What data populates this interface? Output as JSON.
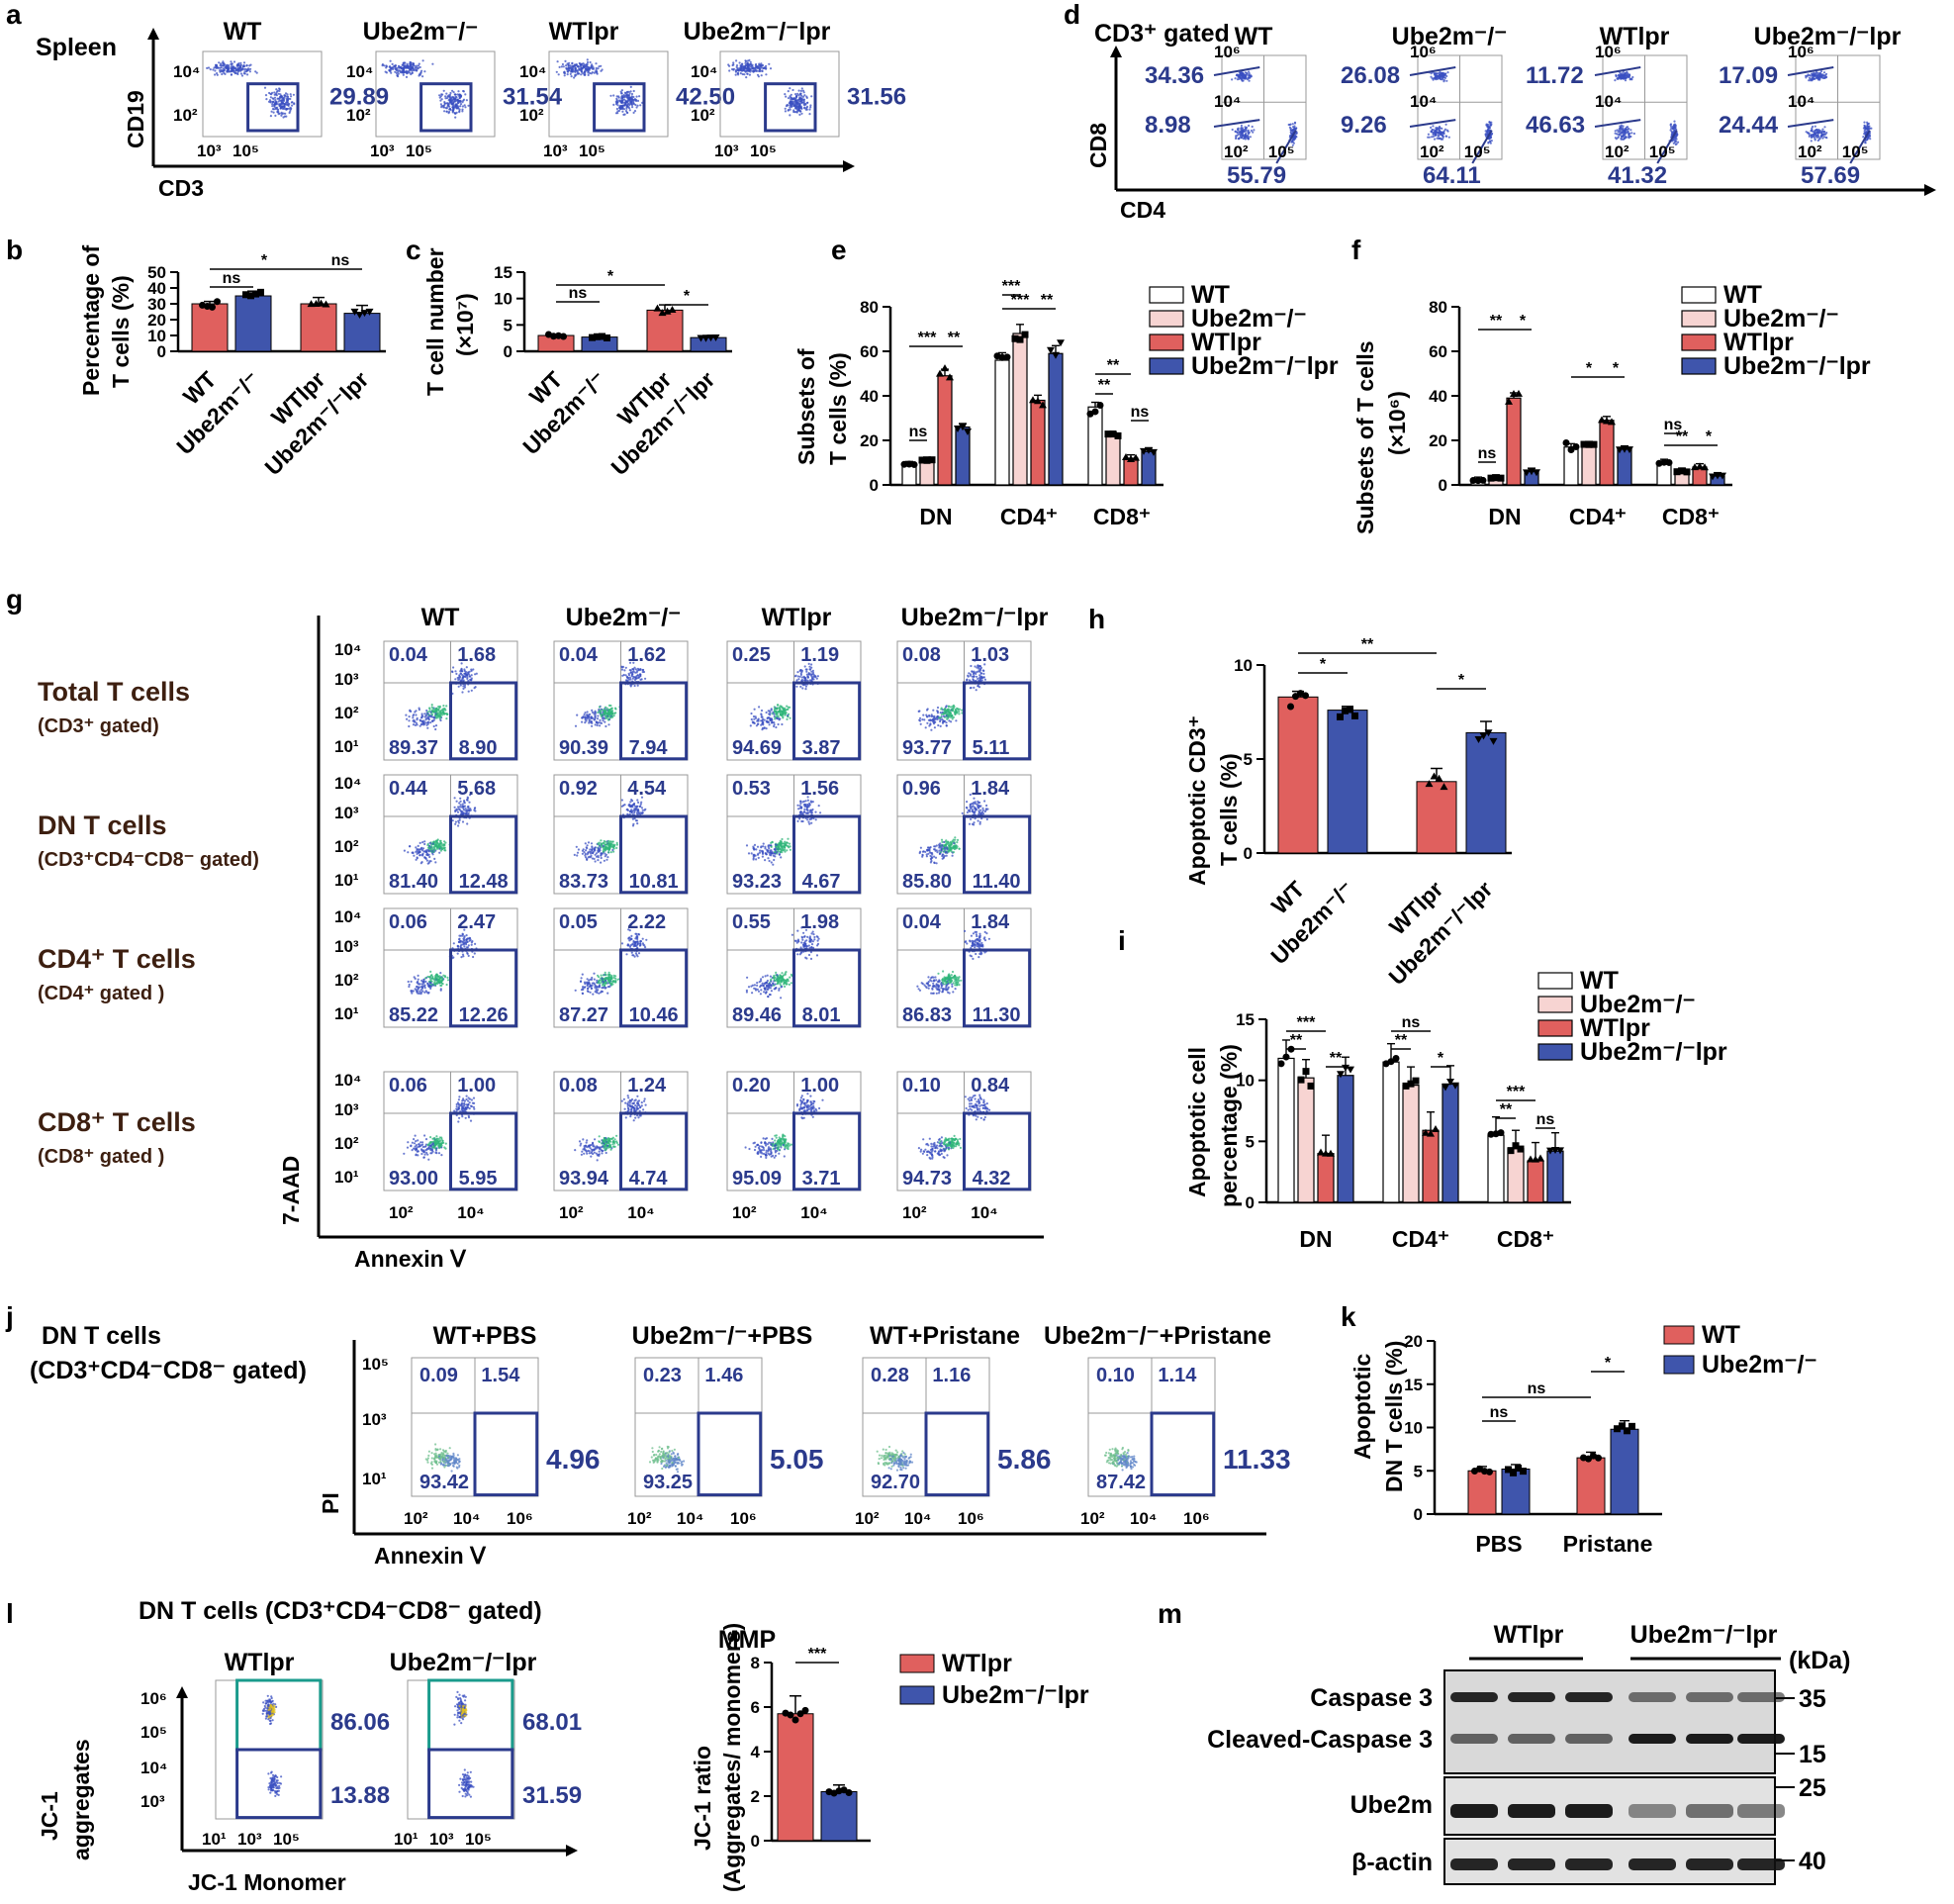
{
  "panel_labels": [
    "a",
    "b",
    "c",
    "d",
    "e",
    "f",
    "g",
    "h",
    "i",
    "j",
    "k",
    "l",
    "m"
  ],
  "groups": [
    "WT",
    "Ube2m⁻/⁻",
    "WTlpr",
    "Ube2m⁻/⁻lpr"
  ],
  "legend_labels": [
    "WT",
    "Ube2m⁻/⁻",
    "WTlpr",
    "Ube2m⁻/⁻lpr"
  ],
  "colors": {
    "wt": "#ffffff",
    "ube": "#f7d4d2",
    "wtlpr": "#e0605e",
    "ubelpr": "#3f55ac",
    "num": "#2b3a8c",
    "teal": "#1a9b8c"
  },
  "panel_a": {
    "tissue": "Spleen",
    "ylabel": "CD19",
    "xlabel": "CD3",
    "yticks": [
      "10⁴",
      "10²"
    ],
    "xticks": [
      "10³",
      "10⁵"
    ],
    "headers": [
      "WT",
      "Ube2m⁻/⁻",
      "WTlpr",
      "Ube2m⁻/⁻lpr"
    ],
    "values": [
      "29.89",
      "31.54",
      "42.50",
      "31.56"
    ]
  },
  "panel_d": {
    "title": "CD3⁺ gated",
    "ylabel": "CD8",
    "xlabel": "CD4",
    "yticks": [
      "10⁶",
      "10⁴"
    ],
    "xticks": [
      "10²",
      "10⁵"
    ],
    "headers": [
      "WT",
      "Ube2m⁻/⁻",
      "WTlpr",
      "Ube2m⁻/⁻lpr"
    ],
    "top": [
      "34.36",
      "26.08",
      "11.72",
      "17.09"
    ],
    "mid": [
      "8.98",
      "9.26",
      "46.63",
      "24.44"
    ],
    "bottom": [
      "55.79",
      "64.11",
      "41.32",
      "57.69"
    ]
  },
  "chart_data": [
    {
      "panel": "b",
      "type": "bar",
      "ylabel": "Percentage of T cells (%)",
      "categories": [
        "WT",
        "Ube2m⁻/⁻",
        "WTlpr",
        "Ube2m⁻/⁻lpr"
      ],
      "values": [
        30,
        35,
        30,
        24
      ],
      "errors": [
        1.5,
        3,
        4,
        5
      ],
      "ylim": [
        0,
        50
      ],
      "yticks": [
        0,
        10,
        20,
        30,
        40,
        50
      ],
      "significance": [
        "ns",
        "*",
        "ns"
      ]
    },
    {
      "panel": "c",
      "type": "bar",
      "ylabel": "T cell number (×10⁷)",
      "categories": [
        "WT",
        "Ube2m⁻/⁻",
        "WTlpr",
        "Ube2m⁻/⁻lpr"
      ],
      "values": [
        3.0,
        2.7,
        7.8,
        2.6
      ],
      "errors": [
        0.1,
        0.1,
        1.0,
        0.4
      ],
      "ylim": [
        0,
        15
      ],
      "yticks": [
        0,
        5,
        10,
        15
      ],
      "significance": [
        "ns",
        "*",
        "*"
      ]
    },
    {
      "panel": "e",
      "type": "bar",
      "ylabel": "Subsets of T cells (%)",
      "categories": [
        "DN",
        "CD4⁺",
        "CD8⁺"
      ],
      "series": [
        {
          "name": "WT",
          "values": [
            9,
            56,
            35
          ]
        },
        {
          "name": "Ube2m⁻/⁻",
          "values": [
            11,
            68,
            22
          ]
        },
        {
          "name": "WTlpr",
          "values": [
            49,
            38,
            12
          ]
        },
        {
          "name": "Ube2m⁻/⁻lpr",
          "values": [
            26,
            59,
            15
          ]
        }
      ],
      "ylim": [
        0,
        80
      ],
      "yticks": [
        0,
        20,
        40,
        60,
        80
      ],
      "significance": [
        "ns",
        "***",
        "**",
        "***",
        "***",
        "**",
        "**",
        "**",
        "ns"
      ]
    },
    {
      "panel": "f",
      "type": "bar",
      "ylabel": "Subsets of T cells (×10⁶)",
      "categories": [
        "DN",
        "CD4⁺",
        "CD8⁺"
      ],
      "series": [
        {
          "name": "WT",
          "values": [
            2,
            17,
            10
          ]
        },
        {
          "name": "Ube2m⁻/⁻",
          "values": [
            3,
            18,
            6
          ]
        },
        {
          "name": "WTlpr",
          "values": [
            39,
            29,
            8
          ]
        },
        {
          "name": "Ube2m⁻/⁻lpr",
          "values": [
            6,
            16,
            4
          ]
        }
      ],
      "ylim": [
        0,
        80
      ],
      "yticks": [
        0,
        20,
        40,
        60,
        80
      ],
      "significance": [
        "ns",
        "**",
        "*",
        "*",
        "*",
        "ns",
        "**",
        "*"
      ]
    },
    {
      "panel": "h",
      "type": "bar",
      "ylabel": "Apoptotic CD3⁺ T cells (%)",
      "categories": [
        "WT",
        "Ube2m⁻/⁻",
        "WTlpr",
        "Ube2m⁻/⁻lpr"
      ],
      "values": [
        8.3,
        7.6,
        3.8,
        6.4
      ],
      "errors": [
        0.3,
        0.2,
        0.7,
        0.6
      ],
      "ylim": [
        0,
        10
      ],
      "yticks": [
        0,
        5,
        10
      ],
      "significance": [
        "*",
        "**",
        "*"
      ]
    },
    {
      "panel": "i",
      "type": "bar",
      "ylabel": "Apoptotic cell percentage (%)",
      "categories": [
        "DN",
        "CD4⁺",
        "CD8⁺"
      ],
      "series": [
        {
          "name": "WT",
          "values": [
            11.8,
            11.5,
            5.5
          ]
        },
        {
          "name": "Ube2m⁻/⁻",
          "values": [
            10.2,
            9.6,
            4.4
          ]
        },
        {
          "name": "WTlpr",
          "values": [
            4.0,
            5.9,
            3.4
          ]
        },
        {
          "name": "Ube2m⁻/⁻lpr",
          "values": [
            10.4,
            9.7,
            4.2
          ]
        }
      ],
      "ylim": [
        0,
        15
      ],
      "yticks": [
        0,
        5,
        10,
        15
      ],
      "significance": [
        "***",
        "**",
        "**",
        "ns",
        "**",
        "*",
        "***",
        "**",
        "ns"
      ]
    },
    {
      "panel": "k",
      "type": "bar",
      "ylabel": "Apoptotic DN T cells (%)",
      "categories": [
        "PBS",
        "Pristane"
      ],
      "series": [
        {
          "name": "WT",
          "values": [
            5.0,
            6.5
          ]
        },
        {
          "name": "Ube2m⁻/⁻",
          "values": [
            5.2,
            9.8
          ]
        }
      ],
      "ylim": [
        0,
        20
      ],
      "yticks": [
        0,
        5,
        10,
        15,
        20
      ],
      "significance": [
        "ns",
        "ns",
        "*"
      ]
    },
    {
      "panel": "l",
      "type": "bar",
      "title": "MMP",
      "ylabel": "JC-1 ratio (Aggregates/ monomers)",
      "categories": [
        "WTlpr",
        "Ube2m⁻/⁻lpr"
      ],
      "values": [
        5.7,
        2.2
      ],
      "errors": [
        0.8,
        0.3
      ],
      "ylim": [
        0,
        8
      ],
      "yticks": [
        0,
        2,
        4,
        6,
        8
      ],
      "significance": [
        "***"
      ]
    }
  ],
  "axis_text": {
    "b_ylabel1": "Percentage of",
    "b_ylabel2": "T cells (%)",
    "c_ylabel1": "T cell number",
    "c_ylabel2": "(×10⁷)",
    "e_ylabel1": "Subsets of",
    "e_ylabel2": "T cells (%)",
    "f_ylabel1": "Subsets of T cells",
    "f_ylabel2": "(×10⁶)",
    "h_ylabel1": "Apoptotic CD3⁺",
    "h_ylabel2": "T cells  (%)",
    "i_ylabel1": "Apoptotic cell",
    "i_ylabel2": "percentage (%)",
    "k_ylabel1": "Apoptotic",
    "k_ylabel2": "DN T cells (%)",
    "l_ylabel1": "JC-1 ratio",
    "l_ylabel2": "(Aggregates/ monomers)"
  },
  "panel_g": {
    "headers": [
      "WT",
      "Ube2m⁻/⁻",
      "WTlpr",
      "Ube2m⁻/⁻lpr"
    ],
    "rows": [
      {
        "label": "Total T cells",
        "sub": "(CD3⁺ gated)"
      },
      {
        "label": "DN T cells",
        "sub": "(CD3⁺CD4⁻CD8⁻ gated)"
      },
      {
        "label": "CD4⁺ T cells",
        "sub": "(CD4⁺  gated )"
      },
      {
        "label": "CD8⁺ T cells",
        "sub": "(CD8⁺  gated )"
      }
    ],
    "ylabel": "7-AAD",
    "xlabel": "Annexin Ⅴ",
    "yticks": [
      "10⁴",
      "10³",
      "10²",
      "10¹"
    ],
    "xticks": [
      "10²",
      "10⁴"
    ],
    "values": [
      [
        [
          "0.04",
          "1.68",
          "89.37",
          "8.90"
        ],
        [
          "0.04",
          "1.62",
          "90.39",
          "7.94"
        ],
        [
          "0.25",
          "1.19",
          "94.69",
          "3.87"
        ],
        [
          "0.08",
          "1.03",
          "93.77",
          "5.11"
        ]
      ],
      [
        [
          "0.44",
          "5.68",
          "81.40",
          "12.48"
        ],
        [
          "0.92",
          "4.54",
          "83.73",
          "10.81"
        ],
        [
          "0.53",
          "1.56",
          "93.23",
          "4.67"
        ],
        [
          "0.96",
          "1.84",
          "85.80",
          "11.40"
        ]
      ],
      [
        [
          "0.06",
          "2.47",
          "85.22",
          "12.26"
        ],
        [
          "0.05",
          "2.22",
          "87.27",
          "10.46"
        ],
        [
          "0.55",
          "1.98",
          "89.46",
          "8.01"
        ],
        [
          "0.04",
          "1.84",
          "86.83",
          "11.30"
        ]
      ],
      [
        [
          "0.06",
          "1.00",
          "93.00",
          "5.95"
        ],
        [
          "0.08",
          "1.24",
          "93.94",
          "4.74"
        ],
        [
          "0.20",
          "1.00",
          "95.09",
          "3.71"
        ],
        [
          "0.10",
          "0.84",
          "94.73",
          "4.32"
        ]
      ]
    ]
  },
  "panel_j": {
    "label1": "DN T cells",
    "label2": "(CD3⁺CD4⁻CD8⁻  gated)",
    "headers": [
      "WT+PBS",
      "Ube2m⁻/⁻+PBS",
      "WT+Pristane",
      "Ube2m⁻/⁻+Pristane"
    ],
    "ylabel": "PI",
    "xlabel": "Annexin Ⅴ",
    "yticks": [
      "10⁵",
      "10³",
      "10¹"
    ],
    "xticks": [
      "10²",
      "10⁴",
      "10⁶"
    ],
    "values": [
      [
        "0.09",
        "1.54",
        "93.42",
        "4.96"
      ],
      [
        "0.23",
        "1.46",
        "93.25",
        "5.05"
      ],
      [
        "0.28",
        "1.16",
        "92.70",
        "5.86"
      ],
      [
        "0.10",
        "1.14",
        "87.42",
        "11.33"
      ]
    ]
  },
  "panel_k_legend": [
    "WT",
    "Ube2m⁻/⁻"
  ],
  "panel_l": {
    "title": "DN T cells (CD3⁺CD4⁻CD8⁻  gated)",
    "headers": [
      "WTlpr",
      "Ube2m⁻/⁻lpr"
    ],
    "ylabel1": "JC-1",
    "ylabel2": "aggregates",
    "xlabel": "JC-1 Monomer",
    "yticks": [
      "10⁶",
      "10⁵",
      "10⁴",
      "10³"
    ],
    "xticks": [
      "10¹",
      "10³",
      "10⁵"
    ],
    "upper": [
      "86.06",
      "68.01"
    ],
    "lower": [
      "13.88",
      "31.59"
    ],
    "legend": [
      "WTlpr",
      "Ube2m⁻/⁻lpr"
    ]
  },
  "panel_m": {
    "groups": [
      "WTlpr",
      "Ube2m⁻/⁻lpr"
    ],
    "unit": "(kDa)",
    "bands": [
      "Caspase 3",
      "Cleaved-Caspase 3",
      "Ube2m",
      "β-actin"
    ],
    "markers": [
      "35",
      "15",
      "25",
      "40"
    ]
  }
}
